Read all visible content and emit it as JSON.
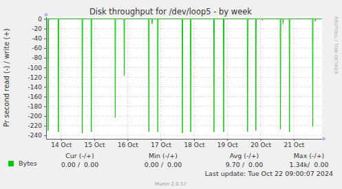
{
  "chart_data": {
    "type": "line",
    "title": "Disk throughput for /dev/loop5 - by week",
    "y_label": "Pr second read (-) / write (+)",
    "x": [
      13.55,
      13.6,
      13.61,
      13.62,
      13.91,
      13.92,
      13.93,
      14.63,
      14.64,
      14.65,
      14.9,
      14.91,
      14.92,
      15.62,
      15.63,
      15.64,
      15.89,
      15.9,
      15.91,
      16.63,
      16.64,
      16.65,
      16.73,
      16.74,
      16.75,
      16.9,
      16.91,
      16.92,
      17.64,
      17.65,
      17.66,
      17.89,
      17.9,
      17.91,
      18.59,
      18.6,
      18.61,
      18.88,
      18.89,
      18.9,
      19.6,
      19.61,
      19.62,
      19.85,
      19.86,
      19.87,
      20.05,
      20.06,
      20.07,
      20.59,
      20.6,
      20.61,
      20.67,
      20.68,
      20.69,
      20.86,
      20.87,
      20.88,
      21.56,
      21.57,
      21.58,
      21.64,
      21.65,
      21.66,
      21.85
    ],
    "series": [
      {
        "name": "Bytes",
        "color": "#00cc00",
        "values": [
          0,
          0,
          -230,
          0,
          0,
          -233,
          0,
          0,
          -235,
          0,
          0,
          -233,
          0,
          0,
          -203,
          0,
          0,
          -117,
          0,
          0,
          -232,
          0,
          0,
          -10,
          0,
          0,
          -233,
          0,
          0,
          -235,
          0,
          0,
          -233,
          0,
          0,
          -233,
          0,
          0,
          -233,
          0,
          0,
          -232,
          0,
          0,
          -230,
          0,
          0,
          -3,
          0,
          0,
          -227,
          0,
          0,
          -10,
          0,
          0,
          -233,
          0,
          0,
          -222,
          0,
          0,
          -5,
          0,
          0
        ]
      }
    ],
    "xlim": [
      13.55,
      21.85
    ],
    "xticks": [
      {
        "value": 14,
        "label": "14 Oct"
      },
      {
        "value": 15,
        "label": "15 Oct"
      },
      {
        "value": 16,
        "label": "16 Oct"
      },
      {
        "value": 17,
        "label": "17 Oct"
      },
      {
        "value": 18,
        "label": "18 Oct"
      },
      {
        "value": 19,
        "label": "19 Oct"
      },
      {
        "value": 20,
        "label": "20 Oct"
      },
      {
        "value": 21,
        "label": "21 Oct"
      }
    ],
    "ylim": [
      -247,
      5
    ],
    "yticks": [
      0,
      -20,
      -40,
      -60,
      -80,
      -100,
      -120,
      -140,
      -160,
      -180,
      -200,
      -220,
      -240
    ],
    "grid": true,
    "legend": "bottom-left",
    "stats": {
      "headers": [
        "Cur (-/+)",
        "Min (-/+)",
        "Avg (-/+)",
        "Max (-/+)"
      ],
      "values": [
        "0.00 /  0.00",
        "0.00 /  0.00",
        "9.70 /  0.00",
        "1.34k/  0.00"
      ]
    },
    "annotations": [
      "Last update: Tue Oct 22 09:00:07 2024",
      "Munin 2.0.57",
      "RRDTOOL / TOBI OETIKER"
    ]
  }
}
